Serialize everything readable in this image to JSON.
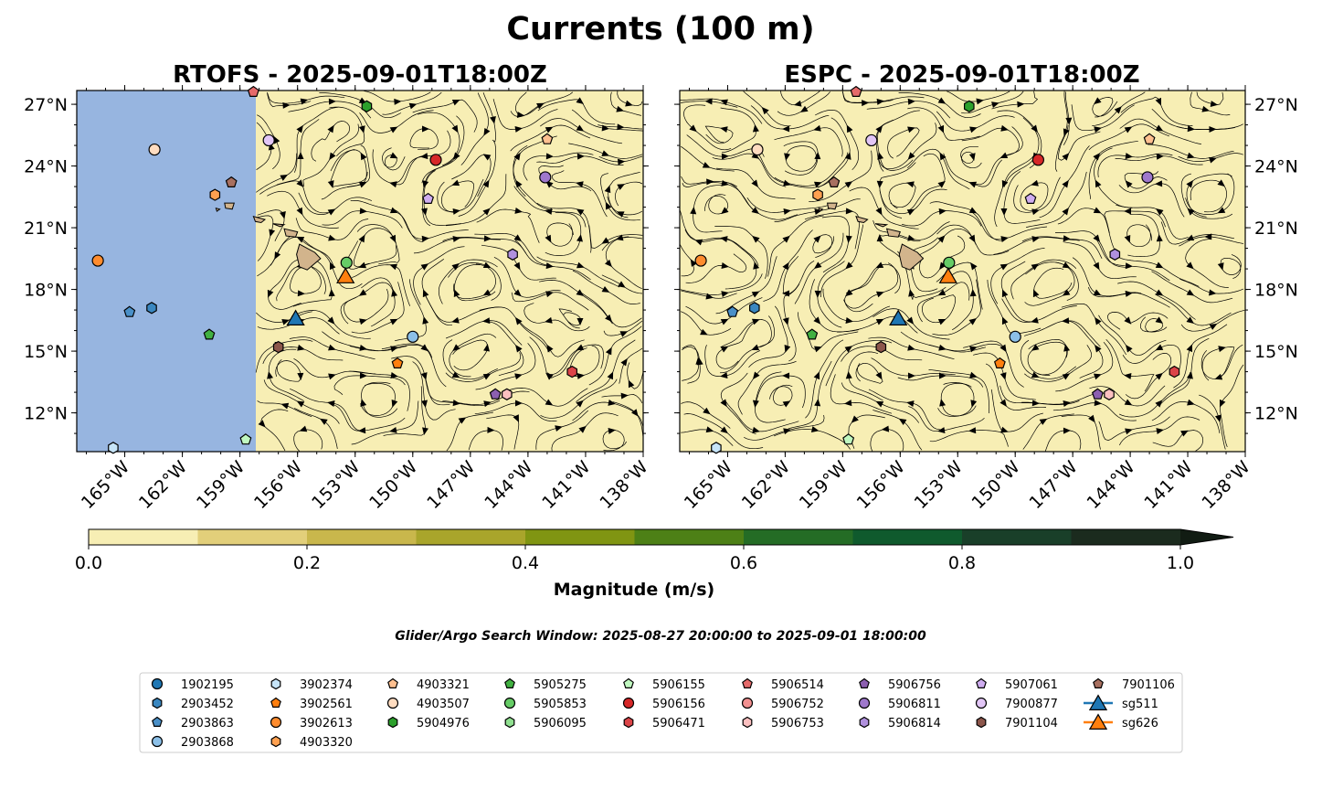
{
  "chart_data": {
    "type": "map-streamplot",
    "title": "Currents (100 m)",
    "panels": [
      {
        "title": "RTOFS - 2025-09-01T18:00Z",
        "model": "RTOFS"
      },
      {
        "title": "ESPC - 2025-09-01T18:00Z",
        "model": "ESPC"
      }
    ],
    "lon_range": [
      -167.5,
      -138
    ],
    "lat_range": [
      10.1,
      27.7
    ],
    "lon_ticks": [
      -165,
      -162,
      -159,
      -156,
      -153,
      -150,
      -147,
      -144,
      -141,
      -138
    ],
    "lon_tick_labels": [
      "165°W",
      "162°W",
      "159°W",
      "156°W",
      "153°W",
      "150°W",
      "147°W",
      "144°W",
      "141°W",
      "138°W"
    ],
    "lat_ticks": [
      12,
      15,
      18,
      21,
      24,
      27
    ],
    "lat_tick_labels": [
      "12°N",
      "15°N",
      "18°N",
      "21°N",
      "24°N",
      "27°N"
    ],
    "colorbar": {
      "label": "Magnitude (m/s)",
      "range": [
        0,
        1
      ],
      "levels": [
        0,
        0.1,
        0.2,
        0.3,
        0.4,
        0.5,
        0.6,
        0.7,
        0.8,
        0.9,
        1.0
      ],
      "colors": [
        "#f7eeb4",
        "#e2cf7a",
        "#c9b74c",
        "#a9a52b",
        "#809512",
        "#4d8016",
        "#246c25",
        "#0f5a2d",
        "#193f29",
        "#1b2b1e"
      ],
      "extend_color": "#111c13",
      "tick_values": [
        0.0,
        0.2,
        0.4,
        0.6,
        0.8,
        1.0
      ],
      "tick_labels": [
        "0.0",
        "0.2",
        "0.4",
        "0.6",
        "0.8",
        "1.0"
      ]
    },
    "subtitle": "Glider/Argo Search Window: 2025-08-27 20:00:00 to 2025-09-01 18:00:00",
    "series": [
      {
        "name": "1902195",
        "color": "#1f77b4",
        "marker": "circle"
      },
      {
        "name": "2903452",
        "color": "#3a87c0",
        "marker": "hexagon",
        "lon": -163.6,
        "lat": 17.1
      },
      {
        "name": "2903863",
        "color": "#4a90c8",
        "marker": "pentagon",
        "lon": -164.75,
        "lat": 16.9
      },
      {
        "name": "2903868",
        "color": "#8cc0e8",
        "marker": "circle",
        "lon": -150.0,
        "lat": 15.7
      },
      {
        "name": "3902374",
        "color": "#c6e4f8",
        "marker": "hexagon",
        "lon": -165.6,
        "lat": 10.3
      },
      {
        "name": "3902561",
        "color": "#ff7f0e",
        "marker": "pentagon",
        "lon": -150.8,
        "lat": 14.4
      },
      {
        "name": "3902613",
        "color": "#ff8c2e",
        "marker": "circle",
        "lon": -166.4,
        "lat": 19.4
      },
      {
        "name": "4903320",
        "color": "#ffa050",
        "marker": "hexagon",
        "lon": -160.3,
        "lat": 22.6
      },
      {
        "name": "4903321",
        "color": "#ffc090",
        "marker": "pentagon",
        "lon": -143.0,
        "lat": 25.3
      },
      {
        "name": "4903507",
        "color": "#ffdcc0",
        "marker": "circle",
        "lon": -163.45,
        "lat": 24.8
      },
      {
        "name": "5904976",
        "color": "#2ca02c",
        "marker": "hexagon",
        "lon": -152.4,
        "lat": 26.9
      },
      {
        "name": "5905275",
        "color": "#41b041",
        "marker": "pentagon",
        "lon": -160.6,
        "lat": 15.8
      },
      {
        "name": "5905853",
        "color": "#66cc66",
        "marker": "circle",
        "lon": -153.45,
        "lat": 19.3
      },
      {
        "name": "5906095",
        "color": "#90e090",
        "marker": "hexagon"
      },
      {
        "name": "5906155",
        "color": "#c0f8c0",
        "marker": "pentagon",
        "lon": -158.7,
        "lat": 10.7
      },
      {
        "name": "5906156",
        "color": "#d62728",
        "marker": "circle",
        "lon": -148.8,
        "lat": 24.3
      },
      {
        "name": "5906471",
        "color": "#dc4448",
        "marker": "hexagon",
        "lon": -141.7,
        "lat": 14.0
      },
      {
        "name": "5906514",
        "color": "#e56a6a",
        "marker": "pentagon",
        "lon": -158.3,
        "lat": 27.6
      },
      {
        "name": "5906752",
        "color": "#f29090",
        "marker": "circle"
      },
      {
        "name": "5906753",
        "color": "#fbc0c0",
        "marker": "hexagon",
        "lon": -145.1,
        "lat": 12.9
      },
      {
        "name": "5906756",
        "color": "#8c5fb0",
        "marker": "pentagon",
        "lon": -145.7,
        "lat": 12.9
      },
      {
        "name": "5906811",
        "color": "#9f78cc",
        "marker": "circle",
        "lon": -143.1,
        "lat": 23.45
      },
      {
        "name": "5906814",
        "color": "#b090dd",
        "marker": "hexagon",
        "lon": -144.8,
        "lat": 19.7
      },
      {
        "name": "5907061",
        "color": "#cfadf0",
        "marker": "pentagon",
        "lon": -149.2,
        "lat": 22.4
      },
      {
        "name": "7900877",
        "color": "#e2c6f6",
        "marker": "circle",
        "lon": -157.5,
        "lat": 25.25
      },
      {
        "name": "7901104",
        "color": "#8c564b",
        "marker": "hexagon",
        "lon": -157.0,
        "lat": 15.2
      },
      {
        "name": "7901106",
        "color": "#a87060",
        "marker": "pentagon",
        "lon": -159.45,
        "lat": 23.2
      },
      {
        "name": "sg511",
        "color": "#1f77b4",
        "marker": "triangle",
        "lon": -156.1,
        "lat": 16.6
      },
      {
        "name": "sg626",
        "color": "#ff7f0e",
        "marker": "triangle",
        "lon": -153.5,
        "lat": 18.65
      }
    ]
  }
}
